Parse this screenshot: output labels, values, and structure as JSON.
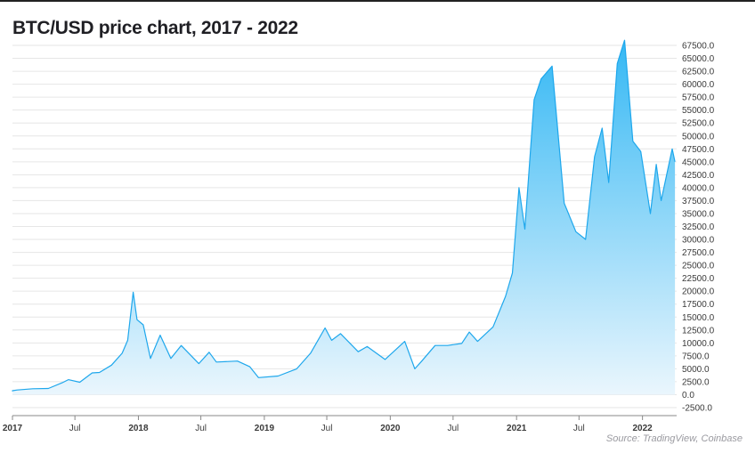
{
  "chart_data": {
    "type": "area",
    "title": "BTC/USD price chart, 2017 - 2022",
    "source": "Source: TradingView, Coinbase",
    "xlabel": "",
    "ylabel": "",
    "ylim": [
      -2500,
      68000
    ],
    "xlim": [
      "2017-01-01",
      "2022-04-10"
    ],
    "grid": true,
    "legend": "none",
    "colors": {
      "line": "#1ea7ec",
      "fill_top": "#35b8f4",
      "fill_bottom": "#eaf6fd",
      "grid": "#e6e6e6"
    },
    "y_ticks": [
      "-2500.0",
      "0.0",
      "2500.0",
      "5000.0",
      "7500.0",
      "10000.0",
      "12500.0",
      "15000.0",
      "17500.0",
      "20000.0",
      "22500.0",
      "25000.0",
      "27500.0",
      "30000.0",
      "32500.0",
      "35000.0",
      "37500.0",
      "40000.0",
      "42500.0",
      "45000.0",
      "47500.0",
      "50000.0",
      "52500.0",
      "55000.0",
      "57500.0",
      "60000.0",
      "62500.0",
      "65000.0",
      "67500.0"
    ],
    "x_ticks": [
      {
        "label": "2017",
        "date": "2017-01-01",
        "year": true
      },
      {
        "label": "Jul",
        "date": "2017-07-01",
        "year": false
      },
      {
        "label": "2018",
        "date": "2018-01-01",
        "year": true
      },
      {
        "label": "Jul",
        "date": "2018-07-01",
        "year": false
      },
      {
        "label": "2019",
        "date": "2019-01-01",
        "year": true
      },
      {
        "label": "Jul",
        "date": "2019-07-01",
        "year": false
      },
      {
        "label": "2020",
        "date": "2020-01-01",
        "year": true
      },
      {
        "label": "Jul",
        "date": "2020-07-01",
        "year": false
      },
      {
        "label": "2021",
        "date": "2021-01-01",
        "year": true
      },
      {
        "label": "Jul",
        "date": "2021-07-01",
        "year": false
      },
      {
        "label": "2022",
        "date": "2022-01-01",
        "year": true
      }
    ],
    "series": [
      {
        "x": [
          "2016-10-15",
          "2016-12-01",
          "2017-01-15",
          "2017-03-01",
          "2017-04-15",
          "2017-05-25",
          "2017-06-12",
          "2017-07-15",
          "2017-08-20",
          "2017-09-10",
          "2017-10-15",
          "2017-11-15",
          "2017-12-01",
          "2017-12-17",
          "2017-12-28",
          "2018-01-15",
          "2018-02-05",
          "2018-03-05",
          "2018-04-05",
          "2018-05-05",
          "2018-06-25",
          "2018-07-25",
          "2018-08-15",
          "2018-10-15",
          "2018-11-20",
          "2018-12-15",
          "2019-02-10",
          "2019-04-05",
          "2019-05-15",
          "2019-06-26",
          "2019-07-15",
          "2019-08-10",
          "2019-09-30",
          "2019-10-26",
          "2019-12-17",
          "2020-02-12",
          "2020-03-12",
          "2020-03-31",
          "2020-05-10",
          "2020-06-15",
          "2020-07-26",
          "2020-08-17",
          "2020-09-10",
          "2020-10-25",
          "2020-11-30",
          "2020-12-20",
          "2021-01-08",
          "2021-01-25",
          "2021-02-21",
          "2021-03-13",
          "2021-04-14",
          "2021-05-19",
          "2021-06-22",
          "2021-07-20",
          "2021-08-15",
          "2021-09-06",
          "2021-09-25",
          "2021-10-20",
          "2021-11-10",
          "2021-12-04",
          "2021-12-27",
          "2022-01-24",
          "2022-02-10",
          "2022-02-24",
          "2022-03-28",
          "2022-04-05"
        ],
        "y": [
          650,
          760,
          900,
          1150,
          1200,
          2300,
          2900,
          2400,
          4200,
          4300,
          5700,
          8000,
          10500,
          19800,
          14500,
          13500,
          7000,
          11500,
          7000,
          9500,
          6000,
          8200,
          6300,
          6500,
          5400,
          3300,
          3600,
          5000,
          8000,
          12900,
          10500,
          11800,
          8300,
          9300,
          6800,
          10300,
          5000,
          6400,
          9500,
          9500,
          9900,
          12100,
          10300,
          13100,
          19000,
          23500,
          40000,
          32000,
          57000,
          61000,
          63500,
          37000,
          31500,
          30000,
          46000,
          51500,
          41000,
          64000,
          68500,
          49000,
          47000,
          35000,
          44500,
          37500,
          47500,
          45000
        ]
      }
    ]
  }
}
